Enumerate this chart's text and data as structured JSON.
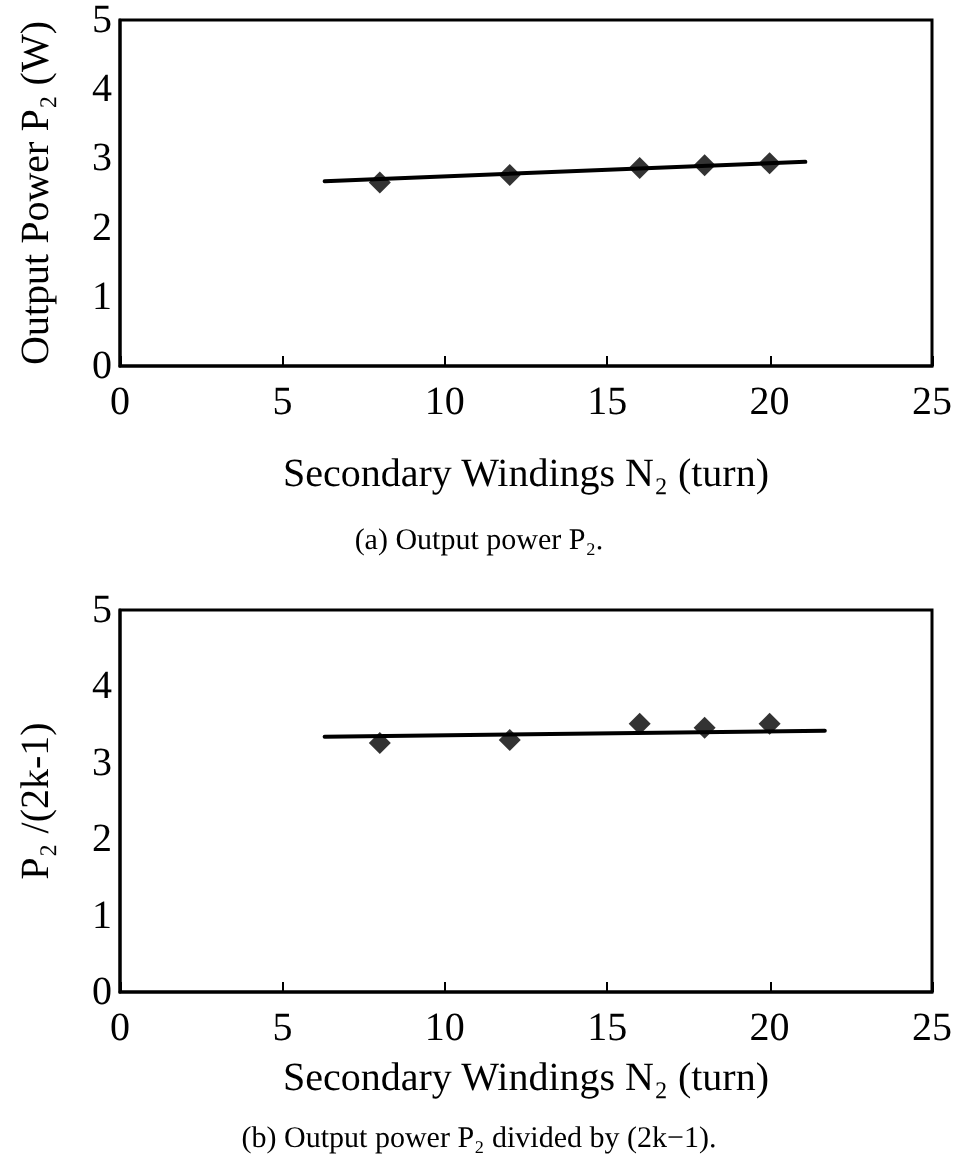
{
  "chart_data": [
    {
      "type": "scatter",
      "title": "(a) Output power P₂.",
      "xlabel": "Secondary Windings N₂ (turn)",
      "ylabel": "Output Power P₂ (W)",
      "x": [
        8,
        12,
        16,
        18,
        20
      ],
      "xlim": [
        0,
        25
      ],
      "xticks": [
        0,
        5,
        10,
        15,
        20,
        25
      ],
      "ylim": [
        0,
        5
      ],
      "yticks": [
        0,
        1,
        2,
        3,
        4,
        5
      ],
      "grid": false,
      "marker": "diamond",
      "series": [
        {
          "color": "#000000",
          "values": [
            2.65,
            2.76,
            2.86,
            2.9,
            2.93
          ]
        },
        {
          "type": "line",
          "color": "#000000",
          "x": [
            6.3,
            21.1
          ],
          "values": [
            2.67,
            2.95
          ],
          "marker": "none",
          "line_style": "solid"
        }
      ]
    },
    {
      "type": "scatter",
      "title": "(b) Output power P₂ divided by (2k−1).",
      "xlabel": "Secondary Windings N₂ (turn)",
      "ylabel": "P₂ /(2k-1)",
      "x": [
        8,
        12,
        16,
        18,
        20
      ],
      "xlim": [
        0,
        25
      ],
      "xticks": [
        0,
        5,
        10,
        15,
        20,
        25
      ],
      "ylim": [
        0,
        5
      ],
      "yticks": [
        0,
        1,
        2,
        3,
        4,
        5
      ],
      "grid": false,
      "marker": "diamond",
      "series": [
        {
          "color": "#000000",
          "values": [
            3.26,
            3.3,
            3.51,
            3.46,
            3.51
          ]
        },
        {
          "type": "line",
          "color": "#000000",
          "x": [
            6.3,
            21.7
          ],
          "values": [
            3.34,
            3.42
          ],
          "marker": "none",
          "line_style": "solid"
        }
      ]
    }
  ]
}
